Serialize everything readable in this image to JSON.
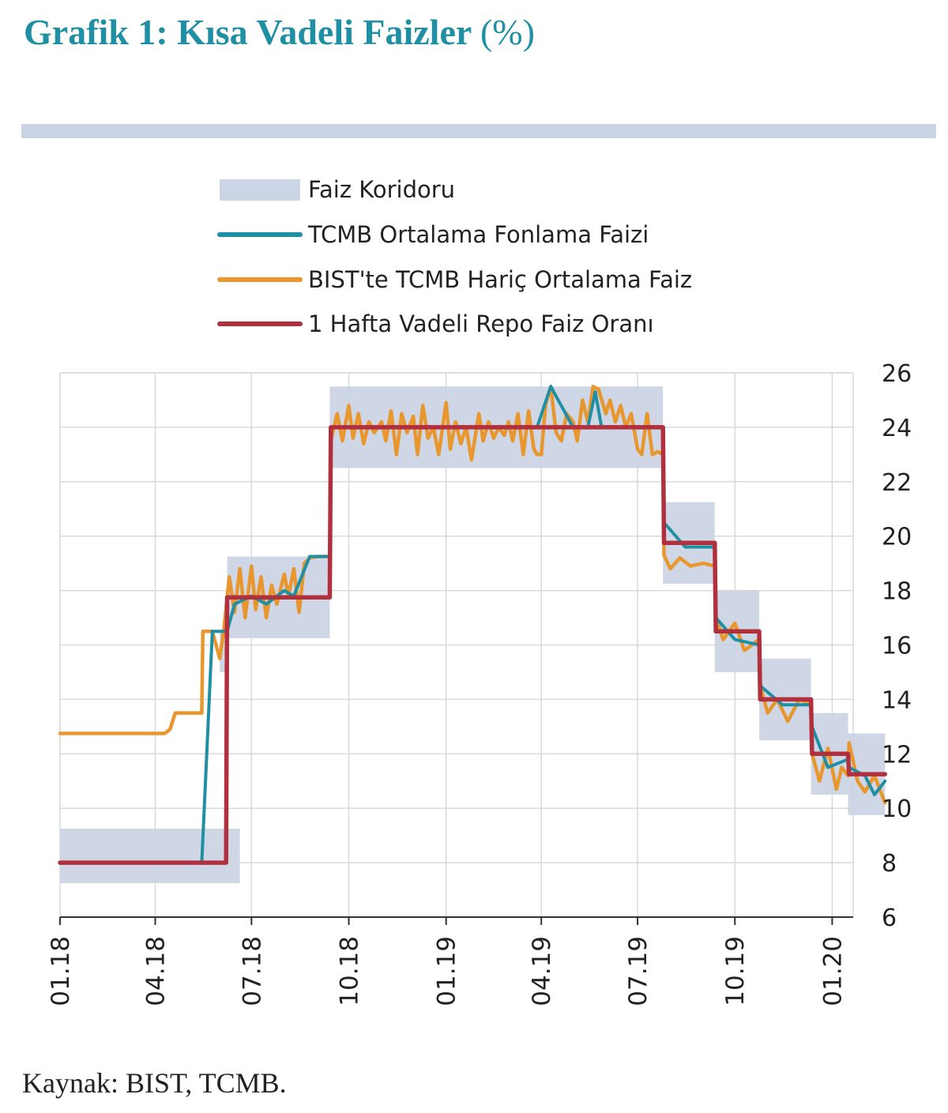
{
  "title": "Grafik 1: Kısa Vadeli Faizler",
  "title_unit": "(%)",
  "source": "Kaynak: BIST, TCMB.",
  "chart_data": {
    "type": "line",
    "x_ticks": [
      "01.18",
      "04.18",
      "07.18",
      "10.18",
      "01.19",
      "04.19",
      "07.19",
      "10.19",
      "01.20"
    ],
    "y_ticks": [
      6,
      8,
      10,
      12,
      14,
      16,
      18,
      20,
      22,
      24,
      26
    ],
    "ylim": [
      6,
      26
    ],
    "xlim": [
      "2018-01-01",
      "2020-02-20"
    ],
    "grid": true,
    "y_axis_position": "right",
    "legend_position": "top-center",
    "legend": [
      "Faiz Koridoru",
      "TCMB Ortalama Fonlama Faizi",
      "BIST'te TCMB Hariç Ortalama Faiz",
      "1 Hafta Vadeli Repo Faiz Oranı"
    ],
    "corridor": [
      {
        "start": "2018-01-01",
        "end": "2018-06-20",
        "low": 7.25,
        "high": 9.25
      },
      {
        "start": "2018-06-01",
        "end": "2018-06-08",
        "low": 15.0,
        "high": 16.5
      },
      {
        "start": "2018-06-08",
        "end": "2018-09-13",
        "low": 16.25,
        "high": 19.25
      },
      {
        "start": "2018-09-13",
        "end": "2019-07-25",
        "low": 22.5,
        "high": 25.5
      },
      {
        "start": "2019-07-25",
        "end": "2019-09-12",
        "low": 18.25,
        "high": 21.25
      },
      {
        "start": "2019-09-12",
        "end": "2019-10-24",
        "low": 15.0,
        "high": 18.0
      },
      {
        "start": "2019-10-24",
        "end": "2019-12-12",
        "low": 12.5,
        "high": 15.5
      },
      {
        "start": "2019-12-12",
        "end": "2020-01-16",
        "low": 10.5,
        "high": 13.5
      },
      {
        "start": "2020-01-16",
        "end": "2020-02-20",
        "low": 9.75,
        "high": 12.75
      }
    ],
    "series": [
      {
        "name": "1 Hafta Vadeli Repo Faiz Oranı",
        "color": "#b1303d",
        "x": [
          "2018-01-01",
          "2018-06-07",
          "2018-06-08",
          "2018-09-13",
          "2018-09-14",
          "2019-07-25",
          "2019-07-26",
          "2019-09-12",
          "2019-09-13",
          "2019-10-24",
          "2019-10-25",
          "2019-12-12",
          "2019-12-13",
          "2020-01-16",
          "2020-01-17",
          "2020-02-20"
        ],
        "y": [
          8,
          8,
          17.75,
          17.75,
          24,
          24,
          19.75,
          19.75,
          16.5,
          16.5,
          14,
          14,
          12,
          12,
          11.25,
          11.25
        ]
      },
      {
        "name": "TCMB Ortalama Fonlama Faizi",
        "color": "#1f8fa3",
        "x": [
          "2018-01-01",
          "2018-05-15",
          "2018-05-25",
          "2018-06-08",
          "2018-06-15",
          "2018-07-01",
          "2018-07-15",
          "2018-08-01",
          "2018-08-10",
          "2018-08-25",
          "2018-09-13",
          "2018-09-14",
          "2018-10-15",
          "2018-11-15",
          "2018-12-15",
          "2019-01-15",
          "2019-02-15",
          "2019-03-15",
          "2019-03-28",
          "2019-04-10",
          "2019-05-01",
          "2019-05-15",
          "2019-05-22",
          "2019-05-28",
          "2019-06-15",
          "2019-07-01",
          "2019-07-25",
          "2019-07-26",
          "2019-08-15",
          "2019-09-12",
          "2019-09-13",
          "2019-10-01",
          "2019-10-24",
          "2019-10-25",
          "2019-11-15",
          "2019-12-12",
          "2019-12-13",
          "2019-12-28",
          "2020-01-16",
          "2020-01-17",
          "2020-02-01",
          "2020-02-10",
          "2020-02-20"
        ],
        "y": [
          8.0,
          8.0,
          16.5,
          16.5,
          17.5,
          17.8,
          17.5,
          18.0,
          17.8,
          19.25,
          19.25,
          24.0,
          24.0,
          24.0,
          24.0,
          24.0,
          24.0,
          24.0,
          24.0,
          25.5,
          24.0,
          24.0,
          25.3,
          24.0,
          24.0,
          24.0,
          24.0,
          20.5,
          19.6,
          19.6,
          17.0,
          16.2,
          16.0,
          14.5,
          13.8,
          13.8,
          13.0,
          11.5,
          11.8,
          11.5,
          11.2,
          10.5,
          11.0
        ]
      },
      {
        "name": "BIST'te TCMB Hariç Ortalama Faiz",
        "color": "#e8962e",
        "x": [
          "2018-01-01",
          "2018-04-10",
          "2018-04-15",
          "2018-04-20",
          "2018-05-01",
          "2018-05-15",
          "2018-05-16",
          "2018-05-25",
          "2018-06-01",
          "2018-06-05",
          "2018-06-10",
          "2018-06-15",
          "2018-06-20",
          "2018-06-25",
          "2018-07-01",
          "2018-07-05",
          "2018-07-10",
          "2018-07-15",
          "2018-07-20",
          "2018-07-25",
          "2018-08-01",
          "2018-08-05",
          "2018-08-10",
          "2018-08-15",
          "2018-08-20",
          "2018-08-25",
          "2018-09-01",
          "2018-09-13",
          "2018-09-14",
          "2018-09-20",
          "2018-09-25",
          "2018-10-01",
          "2018-10-05",
          "2018-10-10",
          "2018-10-15",
          "2018-10-20",
          "2018-10-25",
          "2018-11-01",
          "2018-11-05",
          "2018-11-10",
          "2018-11-15",
          "2018-11-20",
          "2018-11-25",
          "2018-12-01",
          "2018-12-05",
          "2018-12-10",
          "2018-12-15",
          "2018-12-20",
          "2018-12-25",
          "2019-01-01",
          "2019-01-05",
          "2019-01-10",
          "2019-01-15",
          "2019-01-20",
          "2019-01-25",
          "2019-02-01",
          "2019-02-05",
          "2019-02-10",
          "2019-02-15",
          "2019-02-20",
          "2019-02-25",
          "2019-03-01",
          "2019-03-05",
          "2019-03-10",
          "2019-03-15",
          "2019-03-20",
          "2019-03-25",
          "2019-03-28",
          "2019-04-01",
          "2019-04-05",
          "2019-04-10",
          "2019-04-15",
          "2019-04-20",
          "2019-04-25",
          "2019-05-01",
          "2019-05-05",
          "2019-05-10",
          "2019-05-15",
          "2019-05-20",
          "2019-05-25",
          "2019-06-01",
          "2019-06-05",
          "2019-06-10",
          "2019-06-15",
          "2019-06-20",
          "2019-06-25",
          "2019-07-01",
          "2019-07-05",
          "2019-07-10",
          "2019-07-15",
          "2019-07-20",
          "2019-07-25",
          "2019-07-26",
          "2019-08-01",
          "2019-08-10",
          "2019-08-20",
          "2019-09-01",
          "2019-09-12",
          "2019-09-13",
          "2019-09-20",
          "2019-10-01",
          "2019-10-10",
          "2019-10-24",
          "2019-10-25",
          "2019-11-01",
          "2019-11-10",
          "2019-11-20",
          "2019-12-01",
          "2019-12-12",
          "2019-12-13",
          "2019-12-20",
          "2019-12-28",
          "2020-01-05",
          "2020-01-10",
          "2020-01-16",
          "2020-01-17",
          "2020-01-25",
          "2020-02-01",
          "2020-02-10",
          "2020-02-20"
        ],
        "y": [
          12.75,
          12.75,
          12.9,
          13.5,
          13.5,
          13.5,
          16.5,
          16.5,
          15.5,
          16.6,
          18.5,
          17.2,
          18.8,
          17.0,
          18.9,
          17.3,
          18.5,
          17.0,
          18.2,
          17.5,
          18.6,
          17.8,
          18.8,
          17.2,
          19.0,
          19.2,
          19.25,
          19.25,
          23.5,
          24.5,
          23.5,
          24.8,
          23.6,
          24.5,
          23.4,
          24.2,
          23.8,
          24.2,
          23.5,
          24.6,
          23.0,
          24.5,
          23.8,
          24.4,
          23.0,
          24.8,
          23.6,
          24.0,
          23.0,
          24.9,
          23.2,
          24.2,
          23.4,
          24.0,
          22.8,
          24.5,
          23.5,
          24.2,
          23.6,
          24.0,
          23.7,
          24.2,
          23.5,
          24.5,
          23.0,
          24.6,
          23.2,
          23.0,
          23.0,
          24.8,
          25.5,
          23.8,
          23.5,
          24.5,
          24.2,
          23.5,
          25.0,
          24.2,
          25.5,
          25.4,
          24.5,
          25.0,
          24.2,
          24.8,
          24.0,
          24.5,
          23.2,
          23.0,
          24.5,
          23.0,
          23.1,
          23.0,
          19.3,
          18.8,
          19.2,
          18.9,
          19.0,
          18.9,
          17.0,
          16.2,
          16.8,
          15.8,
          16.2,
          14.5,
          13.5,
          14.0,
          13.2,
          14.0,
          13.8,
          12.0,
          11.0,
          12.2,
          10.7,
          11.5,
          11.2,
          12.4,
          11.0,
          10.6,
          11.2,
          10.2
        ]
      }
    ]
  }
}
